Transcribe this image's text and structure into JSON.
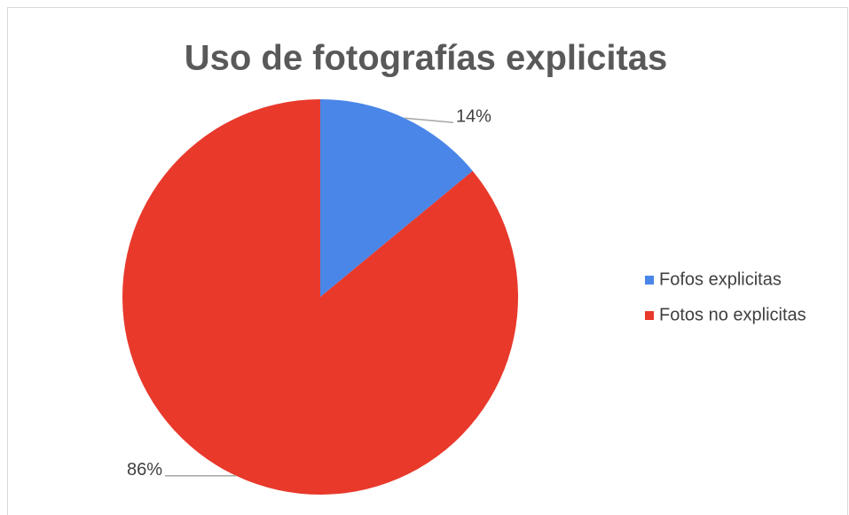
{
  "chart_data": {
    "type": "pie",
    "title": "Uso de fotografías explicitas",
    "categories": [
      "Fofos explicitas",
      "Fotos no explicitas"
    ],
    "values": [
      14,
      86
    ],
    "value_labels": [
      "14%",
      "86%"
    ],
    "colors": [
      "#4a86e8",
      "#e8392b"
    ],
    "legend": "right"
  }
}
